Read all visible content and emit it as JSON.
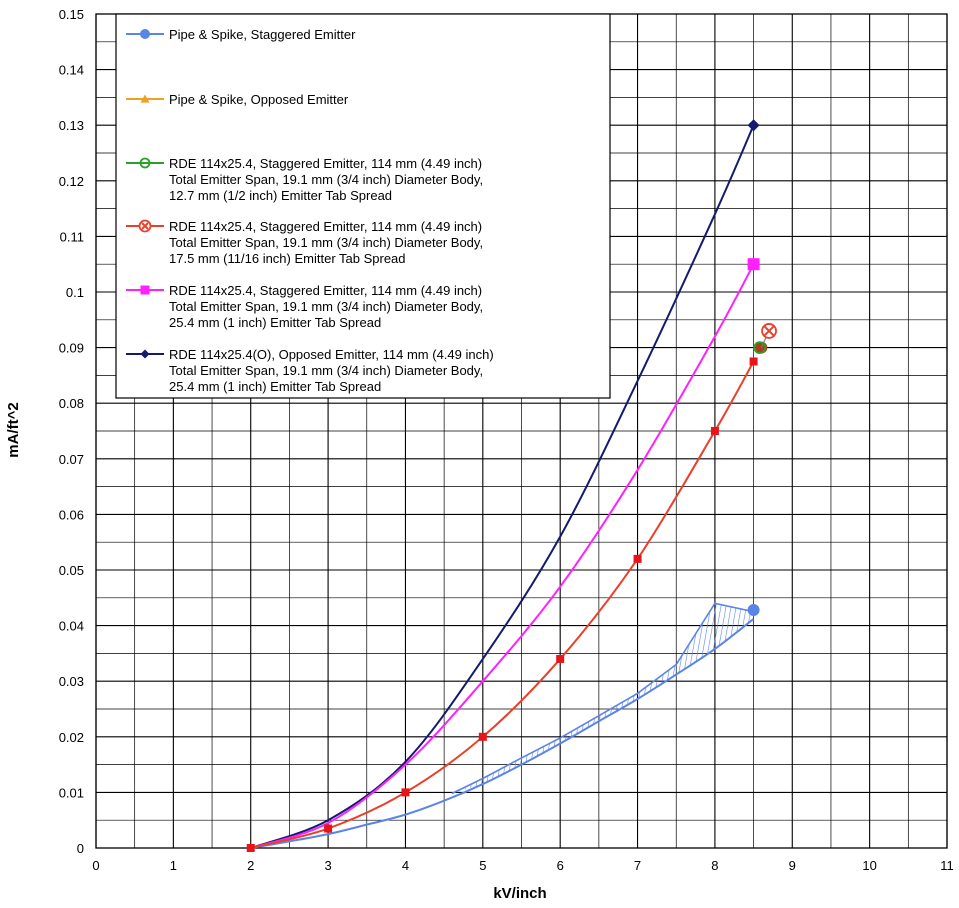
{
  "chart_data": {
    "type": "line",
    "xlabel": "kV/inch",
    "ylabel": "mA/ft^2",
    "xlim": [
      0,
      11
    ],
    "ylim": [
      0,
      0.15
    ],
    "grid": true,
    "legend_position": "top-left inside plot",
    "x_ticks": [
      "0",
      "1",
      "2",
      "3",
      "4",
      "5",
      "6",
      "7",
      "8",
      "9",
      "10",
      "11"
    ],
    "y_ticks": [
      "0",
      "0.01",
      "0.02",
      "0.03",
      "0.04",
      "0.05",
      "0.06",
      "0.07",
      "0.08",
      "0.09",
      "0.1",
      "0.11",
      "0.12",
      "0.13",
      "0.14",
      "0.15"
    ],
    "series": [
      {
        "name": "Pipe & Spike, Staggered Emitter",
        "color": "#5b84e8",
        "marker": "circle",
        "curve_x": [
          2,
          2.5,
          3,
          3.5,
          4,
          4.5,
          5,
          5.5,
          6,
          6.5,
          7,
          7.5,
          8,
          8.5
        ],
        "curve_y": [
          0,
          0.0012,
          0.0025,
          0.0042,
          0.006,
          0.0085,
          0.0115,
          0.015,
          0.0188,
          0.0228,
          0.0268,
          0.0312,
          0.0358,
          0.0412
        ],
        "upper_x": [
          4.6,
          5,
          5.5,
          6,
          6.5,
          7,
          7.5,
          8,
          8.5
        ],
        "upper_y": [
          0.0098,
          0.0125,
          0.0162,
          0.0198,
          0.0238,
          0.0278,
          0.033,
          0.044,
          0.0425
        ],
        "marker_points": [
          {
            "x": 8.5,
            "y": 0.0428
          }
        ]
      },
      {
        "name": "Pipe & Spike, Opposed Emitter",
        "color": "#f0a020",
        "marker": "triangle",
        "marker_points": []
      },
      {
        "name": "RDE 114x25.4, Staggered Emitter, 114 mm (4.49 inch) Total Emitter Span, 19.1 mm (3/4 inch) Diameter Body, 12.7 mm (1/2 inch) Emitter Tab Spread",
        "color": "#2aa02a",
        "marker": "open-circle",
        "marker_points": [
          {
            "x": 8.58,
            "y": 0.09
          }
        ]
      },
      {
        "name": "RDE 114x25.4, Staggered Emitter, 114 mm (4.49 inch) Total Emitter Span, 19.1 mm (3/4 inch) Diameter Body, 17.5 mm (11/16 inch) Emitter Tab Spread",
        "color": "#e8402a",
        "marker": "circle-x",
        "curve_x": [
          2,
          3,
          4,
          5,
          6,
          7,
          8,
          8.5
        ],
        "curve_y": [
          0,
          0.0035,
          0.01,
          0.02,
          0.034,
          0.052,
          0.075,
          0.0875
        ],
        "marker_points": [
          {
            "x": 2,
            "y": 0
          },
          {
            "x": 3,
            "y": 0.0035
          },
          {
            "x": 4,
            "y": 0.01
          },
          {
            "x": 5,
            "y": 0.02
          },
          {
            "x": 6,
            "y": 0.034
          },
          {
            "x": 7,
            "y": 0.052
          },
          {
            "x": 8,
            "y": 0.075
          },
          {
            "x": 8.5,
            "y": 0.0875
          },
          {
            "x": 8.6,
            "y": 0.09
          },
          {
            "x": 8.7,
            "y": 0.093
          }
        ]
      },
      {
        "name": "RDE 114x25.4, Staggered Emitter, 114 mm (4.49 inch) Total Emitter Span, 19.1 mm (3/4 inch) Diameter Body, 25.4 mm (1 inch) Emitter Tab Spread",
        "color": "#ff20ff",
        "marker": "square",
        "curve_x": [
          2,
          3,
          4,
          5,
          6,
          7,
          8,
          8.5
        ],
        "curve_y": [
          0,
          0.0045,
          0.015,
          0.03,
          0.047,
          0.068,
          0.092,
          0.105
        ],
        "marker_points": [
          {
            "x": 8.5,
            "y": 0.105
          }
        ]
      },
      {
        "name": "RDE 114x25.4(O), Opposed Emitter, 114 mm (4.49 inch) Total Emitter Span, 19.1 mm (3/4 inch) Diameter Body, 25.4 mm (1 inch) Emitter Tab Spread",
        "color": "#141a6e",
        "marker": "diamond",
        "curve_x": [
          2,
          3,
          4,
          5,
          6,
          7,
          8,
          8.5
        ],
        "curve_y": [
          0,
          0.005,
          0.0155,
          0.034,
          0.056,
          0.084,
          0.114,
          0.13
        ],
        "marker_points": [
          {
            "x": 8.5,
            "y": 0.13
          }
        ]
      }
    ],
    "legend_entries": [
      {
        "lines": [
          "Pipe & Spike, Staggered Emitter"
        ],
        "color": "#5b84e8",
        "marker": "circle"
      },
      {
        "lines": [
          "Pipe & Spike, Opposed Emitter"
        ],
        "color": "#f0a020",
        "marker": "triangle"
      },
      {
        "lines": [
          "RDE 114x25.4, Staggered Emitter, 114 mm (4.49 inch)",
          "Total Emitter Span, 19.1 mm (3/4 inch) Diameter Body,",
          "12.7 mm (1/2 inch) Emitter Tab Spread"
        ],
        "color": "#2aa02a",
        "marker": "open-circle"
      },
      {
        "lines": [
          "RDE 114x25.4, Staggered Emitter, 114 mm (4.49 inch)",
          "Total Emitter Span, 19.1 mm (3/4 inch) Diameter Body,",
          "17.5 mm (11/16 inch) Emitter Tab Spread"
        ],
        "color": "#e8402a",
        "marker": "circle-x"
      },
      {
        "lines": [
          "RDE 114x25.4, Staggered Emitter, 114 mm (4.49 inch)",
          "Total Emitter Span, 19.1 mm (3/4 inch) Diameter Body,",
          "25.4 mm (1 inch) Emitter Tab Spread"
        ],
        "color": "#ff20ff",
        "marker": "square"
      },
      {
        "lines": [
          "RDE 114x25.4(O), Opposed Emitter, 114 mm (4.49 inch)",
          "Total Emitter Span, 19.1 mm (3/4 inch) Diameter Body,",
          "25.4 mm (1 inch) Emitter Tab Spread"
        ],
        "color": "#141a6e",
        "marker": "diamond"
      }
    ]
  }
}
